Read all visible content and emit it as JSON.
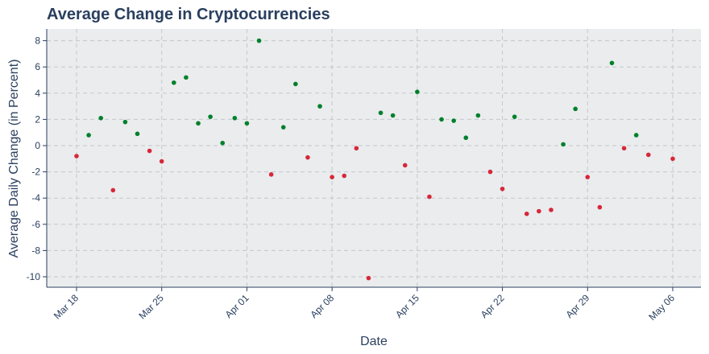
{
  "chart_data": {
    "type": "scatter",
    "title": "Average Change in Cryptocurrencies",
    "xlabel": "Date",
    "ylabel": "Average Daily Change (in Percent)",
    "grid": true,
    "legend": "none",
    "xlim": [
      "2024-03-18",
      "2024-05-06"
    ],
    "ylim": [
      -11,
      9
    ],
    "yticks": [
      8,
      6,
      4,
      2,
      0,
      -2,
      -4,
      -6,
      -8,
      -10
    ],
    "xticks": [
      {
        "date": "2024-03-18",
        "label": "Mar 18"
      },
      {
        "date": "2024-03-25",
        "label": "Mar 25"
      },
      {
        "date": "2024-04-01",
        "label": "Apr 01"
      },
      {
        "date": "2024-04-08",
        "label": "Apr 08"
      },
      {
        "date": "2024-04-15",
        "label": "Apr 15"
      },
      {
        "date": "2024-04-22",
        "label": "Apr 22"
      },
      {
        "date": "2024-04-29",
        "label": "Apr 29"
      },
      {
        "date": "2024-05-06",
        "label": "May 06"
      }
    ],
    "colors": {
      "positive": "#00802b",
      "negative": "#d62839",
      "plot_bg": "#eaecee",
      "grid": "#c4c8cc",
      "axis": "#2a3f5f"
    },
    "points": [
      {
        "x": "2024-03-18",
        "y": -0.8
      },
      {
        "x": "2024-03-19",
        "y": 0.8
      },
      {
        "x": "2024-03-20",
        "y": 2.1
      },
      {
        "x": "2024-03-21",
        "y": -3.4
      },
      {
        "x": "2024-03-22",
        "y": 1.8
      },
      {
        "x": "2024-03-23",
        "y": 0.9
      },
      {
        "x": "2024-03-24",
        "y": -0.4
      },
      {
        "x": "2024-03-25",
        "y": -1.2
      },
      {
        "x": "2024-03-26",
        "y": 4.8
      },
      {
        "x": "2024-03-27",
        "y": 5.2
      },
      {
        "x": "2024-03-28",
        "y": 1.7
      },
      {
        "x": "2024-03-29",
        "y": 2.2
      },
      {
        "x": "2024-03-30",
        "y": 0.2
      },
      {
        "x": "2024-03-31",
        "y": 2.1
      },
      {
        "x": "2024-04-01",
        "y": 1.7
      },
      {
        "x": "2024-04-02",
        "y": 8.0
      },
      {
        "x": "2024-04-03",
        "y": -2.2
      },
      {
        "x": "2024-04-04",
        "y": 1.4
      },
      {
        "x": "2024-04-05",
        "y": 4.7
      },
      {
        "x": "2024-04-06",
        "y": -0.9
      },
      {
        "x": "2024-04-07",
        "y": 3.0
      },
      {
        "x": "2024-04-08",
        "y": -2.4
      },
      {
        "x": "2024-04-09",
        "y": -2.3
      },
      {
        "x": "2024-04-10",
        "y": -0.2
      },
      {
        "x": "2024-04-11",
        "y": -10.1
      },
      {
        "x": "2024-04-12",
        "y": 2.5
      },
      {
        "x": "2024-04-13",
        "y": 2.3
      },
      {
        "x": "2024-04-14",
        "y": -1.5
      },
      {
        "x": "2024-04-15",
        "y": 4.1
      },
      {
        "x": "2024-04-16",
        "y": -3.9
      },
      {
        "x": "2024-04-17",
        "y": 2.0
      },
      {
        "x": "2024-04-18",
        "y": 1.9
      },
      {
        "x": "2024-04-19",
        "y": 0.6
      },
      {
        "x": "2024-04-20",
        "y": 2.3
      },
      {
        "x": "2024-04-21",
        "y": -2.0
      },
      {
        "x": "2024-04-22",
        "y": -3.3
      },
      {
        "x": "2024-04-23",
        "y": 2.2
      },
      {
        "x": "2024-04-24",
        "y": -5.2
      },
      {
        "x": "2024-04-25",
        "y": -5.0
      },
      {
        "x": "2024-04-26",
        "y": -4.9
      },
      {
        "x": "2024-04-27",
        "y": 0.1
      },
      {
        "x": "2024-04-28",
        "y": 2.8
      },
      {
        "x": "2024-04-29",
        "y": -2.4
      },
      {
        "x": "2024-04-30",
        "y": -4.7
      },
      {
        "x": "2024-05-01",
        "y": 6.3
      },
      {
        "x": "2024-05-02",
        "y": -0.2
      },
      {
        "x": "2024-05-03",
        "y": 0.8
      },
      {
        "x": "2024-05-04",
        "y": -0.7
      },
      {
        "x": "2024-05-06",
        "y": -1.0
      }
    ]
  }
}
